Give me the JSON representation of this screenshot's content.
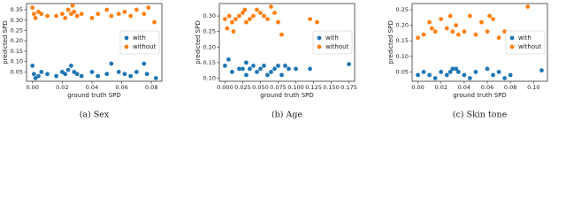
{
  "chart_data": [
    {
      "type": "scatter",
      "caption": "(a) Sex",
      "xlabel": "ground truth SPD",
      "ylabel": "predicted SPD",
      "xlim": [
        -0.004,
        0.087
      ],
      "ylim": [
        0.005,
        0.38
      ],
      "xticks": [
        {
          "value": 0.0,
          "label": "0.00"
        },
        0.02,
        0.04,
        0.06,
        0.08
      ],
      "yticks": [
        0.05,
        {
          "value": 0.1,
          "label": "0.10"
        },
        0.15,
        {
          "value": 0.2,
          "label": "0.20"
        },
        0.25,
        {
          "value": 0.3,
          "label": "0.30"
        },
        0.35
      ],
      "legend": "center right",
      "series": [
        {
          "name": "with",
          "color": "#1f77b4",
          "x": [
            0.0,
            0.001,
            0.004,
            0.006,
            0.01,
            0.016,
            0.02,
            0.022,
            0.024,
            0.026,
            0.028,
            0.03,
            0.033,
            0.04,
            0.044,
            0.05,
            0.053,
            0.058,
            0.062,
            0.066,
            0.07,
            0.075,
            0.077,
            0.083,
            0.002
          ],
          "values": [
            0.08,
            0.04,
            0.03,
            0.05,
            0.04,
            0.03,
            0.05,
            0.04,
            0.06,
            0.08,
            0.05,
            0.04,
            0.03,
            0.05,
            0.03,
            0.04,
            0.09,
            0.05,
            0.04,
            0.03,
            0.05,
            0.09,
            0.04,
            0.02,
            0.02
          ]
        },
        {
          "name": "without",
          "color": "#ff7f0e",
          "x": [
            0.0,
            0.001,
            0.002,
            0.004,
            0.006,
            0.01,
            0.016,
            0.02,
            0.022,
            0.024,
            0.026,
            0.027,
            0.028,
            0.03,
            0.033,
            0.04,
            0.044,
            0.05,
            0.053,
            0.058,
            0.062,
            0.066,
            0.07,
            0.075,
            0.078,
            0.082
          ],
          "values": [
            0.36,
            0.33,
            0.31,
            0.34,
            0.33,
            0.32,
            0.32,
            0.33,
            0.31,
            0.35,
            0.33,
            0.37,
            0.34,
            0.32,
            0.33,
            0.31,
            0.33,
            0.35,
            0.32,
            0.33,
            0.34,
            0.32,
            0.35,
            0.33,
            0.36,
            0.29
          ]
        }
      ]
    },
    {
      "type": "scatter",
      "caption": "(b) Age",
      "xlabel": "ground truth SPD",
      "ylabel": "predicted SPD",
      "xlim": [
        -0.008,
        0.183
      ],
      "ylim": [
        0.09,
        0.34
      ],
      "xticks": [
        {
          "value": 0.0,
          "label": "0.000"
        },
        0.025,
        {
          "value": 0.05,
          "label": "0.050"
        },
        0.075,
        {
          "value": 0.1,
          "label": "0.100"
        },
        0.125,
        {
          "value": 0.15,
          "label": "0.150"
        },
        0.175
      ],
      "yticks": [
        {
          "value": 0.1,
          "label": "0.10"
        },
        0.15,
        {
          "value": 0.2,
          "label": "0.20"
        },
        0.25,
        {
          "value": 0.3,
          "label": "0.30"
        }
      ],
      "legend": "center right",
      "series": [
        {
          "name": "with",
          "color": "#1f77b4",
          "x": [
            0.0,
            0.005,
            0.01,
            0.02,
            0.03,
            0.035,
            0.04,
            0.045,
            0.05,
            0.055,
            0.06,
            0.065,
            0.07,
            0.075,
            0.08,
            0.085,
            0.09,
            0.1,
            0.12,
            0.175,
            0.025,
            0.03
          ],
          "values": [
            0.14,
            0.16,
            0.12,
            0.13,
            0.11,
            0.13,
            0.14,
            0.12,
            0.13,
            0.14,
            0.11,
            0.12,
            0.13,
            0.14,
            0.11,
            0.14,
            0.13,
            0.13,
            0.13,
            0.145,
            0.13,
            0.15
          ]
        },
        {
          "name": "without",
          "color": "#ff7f0e",
          "x": [
            0.0,
            0.003,
            0.006,
            0.01,
            0.015,
            0.02,
            0.025,
            0.03,
            0.035,
            0.04,
            0.045,
            0.05,
            0.055,
            0.06,
            0.065,
            0.07,
            0.075,
            0.08,
            0.12,
            0.13,
            0.012,
            0.028
          ],
          "values": [
            0.29,
            0.26,
            0.3,
            0.28,
            0.29,
            0.3,
            0.31,
            0.28,
            0.29,
            0.3,
            0.32,
            0.31,
            0.3,
            0.29,
            0.33,
            0.31,
            0.28,
            0.24,
            0.29,
            0.28,
            0.25,
            0.32
          ]
        }
      ]
    },
    {
      "type": "scatter",
      "caption": "(c) Skin tone",
      "xlabel": "ground truth SPD",
      "ylabel": "predicted SPD",
      "xlim": [
        -0.005,
        0.112
      ],
      "ylim": [
        0.02,
        0.27
      ],
      "xticks": [
        {
          "value": 0.0,
          "label": "0.00"
        },
        0.02,
        0.04,
        0.06,
        0.08,
        {
          "value": 0.1,
          "label": "0.10"
        }
      ],
      "yticks": [
        0.05,
        {
          "value": 0.1,
          "label": "0.10"
        },
        0.15,
        {
          "value": 0.2,
          "label": "0.20"
        },
        0.25
      ],
      "legend": "center right",
      "series": [
        {
          "name": "with",
          "color": "#1f77b4",
          "x": [
            0.0,
            0.005,
            0.01,
            0.015,
            0.02,
            0.025,
            0.03,
            0.035,
            0.04,
            0.045,
            0.05,
            0.06,
            0.065,
            0.07,
            0.075,
            0.08,
            0.107,
            0.028,
            0.033
          ],
          "values": [
            0.04,
            0.05,
            0.04,
            0.03,
            0.05,
            0.04,
            0.06,
            0.05,
            0.04,
            0.03,
            0.05,
            0.06,
            0.04,
            0.05,
            0.03,
            0.04,
            0.055,
            0.05,
            0.06
          ]
        },
        {
          "name": "without",
          "color": "#ff7f0e",
          "x": [
            0.0,
            0.005,
            0.01,
            0.015,
            0.02,
            0.025,
            0.028,
            0.03,
            0.033,
            0.035,
            0.04,
            0.045,
            0.05,
            0.055,
            0.06,
            0.065,
            0.07,
            0.075,
            0.095,
            0.012,
            0.062
          ],
          "values": [
            0.16,
            0.17,
            0.21,
            0.18,
            0.22,
            0.19,
            0.23,
            0.18,
            0.2,
            0.17,
            0.18,
            0.23,
            0.17,
            0.21,
            0.18,
            0.22,
            0.16,
            0.18,
            0.26,
            0.19,
            0.23
          ]
        }
      ]
    }
  ]
}
